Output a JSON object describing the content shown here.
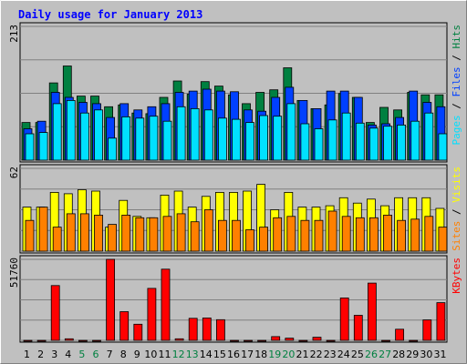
{
  "chart_data": {
    "type": "bar",
    "title": "Daily usage for January 2013",
    "categories": [
      "1",
      "2",
      "3",
      "4",
      "5",
      "6",
      "7",
      "8",
      "9",
      "10",
      "11",
      "12",
      "13",
      "14",
      "15",
      "16",
      "17",
      "18",
      "19",
      "20",
      "21",
      "22",
      "23",
      "24",
      "25",
      "26",
      "27",
      "28",
      "29",
      "30",
      "31"
    ],
    "weekend_days": [
      "5",
      "6",
      "12",
      "13",
      "19",
      "20",
      "26",
      "27"
    ],
    "panels": [
      {
        "name": "pages-files-hits",
        "ymax_label": "213",
        "ylim": [
          0,
          213
        ],
        "grid": true,
        "legend": [
          "Pages",
          "Files",
          "Hits"
        ],
        "series": [
          {
            "name": "Hits",
            "color": "#008040",
            "values": [
              60,
              60,
              123,
              150,
              102,
              102,
              85,
              88,
              75,
              74,
              100,
              126,
              105,
              125,
              118,
              104,
              90,
              108,
              112,
              147,
              95,
              82,
              88,
              106,
              100,
              60,
              84,
              80,
              108,
              104,
              104
            ]
          },
          {
            "name": "Files",
            "color": "#0040ff",
            "values": [
              50,
              62,
              108,
              100,
              92,
              90,
              68,
              90,
              80,
              85,
              90,
              108,
              110,
              113,
              110,
              109,
              80,
              78,
              100,
              116,
              95,
              82,
              110,
              110,
              100,
              56,
              58,
              68,
              110,
              92,
              85
            ]
          },
          {
            "name": "Pages",
            "color": "#00e0ff",
            "values": [
              42,
              44,
              90,
              95,
              75,
              80,
              35,
              69,
              67,
              70,
              62,
              85,
              82,
              80,
              67,
              65,
              60,
              71,
              70,
              90,
              58,
              50,
              64,
              75,
              59,
              51,
              54,
              56,
              62,
              75,
              42
            ]
          }
        ]
      },
      {
        "name": "visits-sites",
        "ymax_label": "62",
        "ylim": [
          0,
          62
        ],
        "grid": true,
        "legend": [
          "Sites",
          "Visits"
        ],
        "series": [
          {
            "name": "Visits",
            "color": "#ffff00",
            "values": [
              33,
              33,
              44,
              43,
              46,
              45,
              18,
              38,
              26,
              25,
              42,
              45,
              33,
              41,
              44,
              44,
              45,
              50,
              31,
              44,
              33,
              33,
              34,
              40,
              36,
              39,
              34,
              40,
              40,
              40,
              32
            ]
          },
          {
            "name": "Sites",
            "color": "#ff8000",
            "values": [
              23,
              33,
              18,
              28,
              28,
              27,
              20,
              27,
              25,
              25,
              26,
              28,
              22,
              31,
              23,
              23,
              16,
              18,
              25,
              26,
              23,
              23,
              30,
              26,
              25,
              25,
              27,
              23,
              24,
              26,
              18
            ]
          }
        ]
      },
      {
        "name": "kbytes",
        "ymax_label": "51760",
        "ylim": [
          0,
          51760
        ],
        "grid": true,
        "legend": [
          "KBytes"
        ],
        "series": [
          {
            "name": "KBytes",
            "color": "#ff0000",
            "values": [
              0,
              0,
              35000,
              1000,
              0,
              0,
              51760,
              18300,
              10300,
              33200,
              45500,
              1000,
              14100,
              14300,
              13200,
              0,
              0,
              0,
              2400,
              1400,
              0,
              2000,
              0,
              27100,
              16000,
              36600,
              0,
              7100,
              0,
              13100,
              24100
            ]
          }
        ]
      }
    ]
  },
  "colors": {
    "background": "#c0c0c0",
    "title_text": "#0000ff",
    "weekend_label": "#008040",
    "weekday_label": "#000000"
  }
}
